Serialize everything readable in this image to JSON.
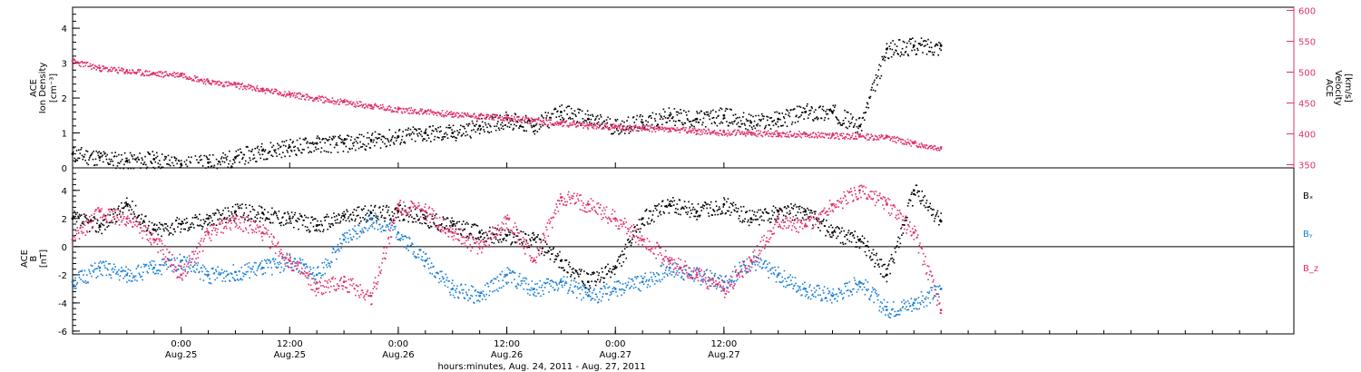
{
  "colors": {
    "black": "#000000",
    "pink": "#e0306a",
    "blue": "#1a7fd6",
    "frame": "#000000"
  },
  "chart_data": [
    {
      "type": "scatter",
      "panel": "top",
      "ylabel_left": [
        "ACE",
        "Ion Density",
        "[cm⁻³]"
      ],
      "ylabel_right": [
        "ACE",
        "Velocity",
        "[km/s]"
      ],
      "ylim_left": [
        0,
        4.6
      ],
      "ylim_right": [
        345,
        605
      ],
      "left_ticks": [
        "0",
        "1",
        "2",
        "3",
        "4"
      ],
      "right_ticks": [
        "350",
        "400",
        "450",
        "500",
        "550",
        "600"
      ],
      "time_range_hours": [
        0,
        64
      ],
      "series": [
        {
          "axis": "left",
          "color": "black",
          "x": [
            0,
            2,
            4,
            6,
            8,
            10,
            12,
            14,
            16,
            18,
            20,
            22,
            24,
            26,
            28,
            30,
            32,
            34,
            36,
            38,
            40,
            42,
            44,
            46,
            48,
            50,
            52,
            54,
            56,
            58,
            60,
            62,
            64
          ],
          "y": [
            0.4,
            0.3,
            0.2,
            0.25,
            0.1,
            0.15,
            0.3,
            0.5,
            0.6,
            0.7,
            0.7,
            0.8,
            0.9,
            1.0,
            1.0,
            1.2,
            1.4,
            1.2,
            1.6,
            1.4,
            1.2,
            1.3,
            1.5,
            1.4,
            1.5,
            1.3,
            1.4,
            1.6,
            1.6,
            1.2,
            3.4,
            3.5,
            3.5
          ]
        },
        {
          "axis": "right",
          "color": "pink",
          "x": [
            0,
            2,
            4,
            6,
            8,
            10,
            12,
            14,
            16,
            18,
            20,
            22,
            24,
            26,
            28,
            30,
            32,
            34,
            36,
            38,
            40,
            42,
            44,
            46,
            48,
            50,
            52,
            54,
            56,
            58,
            60,
            62,
            64
          ],
          "y": [
            518,
            507,
            502,
            498,
            497,
            485,
            480,
            472,
            465,
            458,
            452,
            446,
            440,
            437,
            432,
            430,
            426,
            422,
            418,
            414,
            412,
            410,
            408,
            405,
            403,
            402,
            401,
            400,
            398,
            397,
            395,
            385,
            378
          ]
        }
      ]
    },
    {
      "type": "scatter",
      "panel": "bottom",
      "ylabel_left": [
        "ACE",
        "B",
        "[nT]"
      ],
      "ylim": [
        -6.2,
        5.6
      ],
      "left_ticks": [
        "-6",
        "-4",
        "-2",
        "0",
        "2",
        "4"
      ],
      "time_range_hours": [
        0,
        64
      ],
      "series": [
        {
          "name": "Bₓ",
          "color": "black",
          "x": [
            0,
            2,
            4,
            6,
            8,
            10,
            12,
            14,
            16,
            18,
            20,
            22,
            24,
            26,
            28,
            30,
            32,
            34,
            36,
            38,
            40,
            42,
            44,
            46,
            48,
            50,
            52,
            54,
            56,
            58,
            60,
            62,
            64
          ],
          "y": [
            2.0,
            1.5,
            3.0,
            1.2,
            1.6,
            2.0,
            2.5,
            2.4,
            2.0,
            1.5,
            2.2,
            2.4,
            2.5,
            2.0,
            1.5,
            1.0,
            0.8,
            0.5,
            -1.0,
            -2.5,
            -1.5,
            2.0,
            3.0,
            2.5,
            3.0,
            2.0,
            2.5,
            2.5,
            1.0,
            0.5,
            -2.0,
            4.0,
            1.8
          ]
        },
        {
          "name": "Bᵧ",
          "color": "blue",
          "x": [
            0,
            2,
            4,
            6,
            8,
            10,
            12,
            14,
            16,
            18,
            20,
            22,
            24,
            26,
            28,
            30,
            32,
            34,
            36,
            38,
            40,
            42,
            44,
            46,
            48,
            50,
            52,
            54,
            56,
            58,
            60,
            62,
            64
          ],
          "y": [
            -2.5,
            -1.5,
            -2.0,
            -1.5,
            -1.0,
            -2.0,
            -1.8,
            -1.5,
            -1.0,
            -2.0,
            0.5,
            2.0,
            1.0,
            -1.0,
            -3.0,
            -3.5,
            -2.0,
            -3.0,
            -2.5,
            -3.5,
            -3.0,
            -2.5,
            -1.5,
            -2.0,
            -2.5,
            -1.0,
            -2.0,
            -3.0,
            -3.5,
            -2.5,
            -4.5,
            -4.0,
            -3.0
          ]
        },
        {
          "name": "B_z",
          "color": "pink",
          "x": [
            0,
            2,
            4,
            6,
            8,
            10,
            12,
            14,
            16,
            18,
            20,
            22,
            24,
            26,
            28,
            30,
            32,
            34,
            36,
            38,
            40,
            42,
            44,
            46,
            48,
            50,
            52,
            54,
            56,
            58,
            60,
            62,
            64
          ],
          "y": [
            0.5,
            2.5,
            2.0,
            0.5,
            -2.0,
            1.0,
            2.0,
            1.0,
            -1.0,
            -3.0,
            -2.5,
            -3.5,
            3.0,
            2.5,
            1.0,
            0.0,
            2.0,
            -1.0,
            3.5,
            3.0,
            2.0,
            0.5,
            -1.0,
            -2.0,
            -3.0,
            -1.0,
            2.0,
            1.5,
            3.0,
            4.0,
            3.0,
            1.0,
            -4.5
          ]
        }
      ],
      "legend": [
        "Bₓ",
        "Bᵧ",
        "B_z"
      ],
      "legend_placement": "right"
    }
  ],
  "x_axis": {
    "ticks": [
      {
        "hour": 0,
        "time": "",
        "date": ""
      },
      {
        "hour": 8,
        "time": "0:00",
        "date": "Aug.25"
      },
      {
        "hour": 16,
        "time": "12:00",
        "date": "Aug.25"
      },
      {
        "hour": 24,
        "time": "0:00",
        "date": "Aug.26"
      },
      {
        "hour": 32,
        "time": "12:00",
        "date": "Aug.26"
      },
      {
        "hour": 40,
        "time": "0:00",
        "date": "Aug.27"
      },
      {
        "hour": 48,
        "time": "12:00",
        "date": "Aug.27"
      }
    ],
    "label": "hours:minutes, Aug. 24, 2011 - Aug. 27, 2011"
  },
  "legend": {
    "bx": "Bₓ",
    "by": "Bᵧ",
    "bz": "B_z"
  }
}
